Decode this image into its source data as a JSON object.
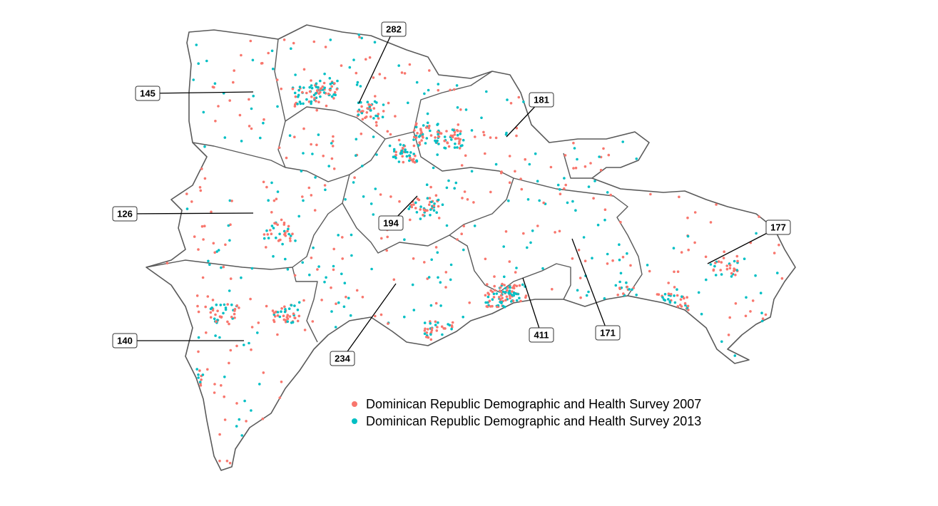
{
  "map": {
    "region_counts": [
      282,
      145,
      181,
      126,
      194,
      177,
      140,
      234,
      411,
      171
    ],
    "legend": [
      {
        "name": "Dominican Republic Demographic and Health Survey 2007",
        "color": "#F8766D"
      },
      {
        "name": "Dominican Republic Demographic and Health Survey 2013",
        "color": "#00BFC4"
      }
    ]
  }
}
